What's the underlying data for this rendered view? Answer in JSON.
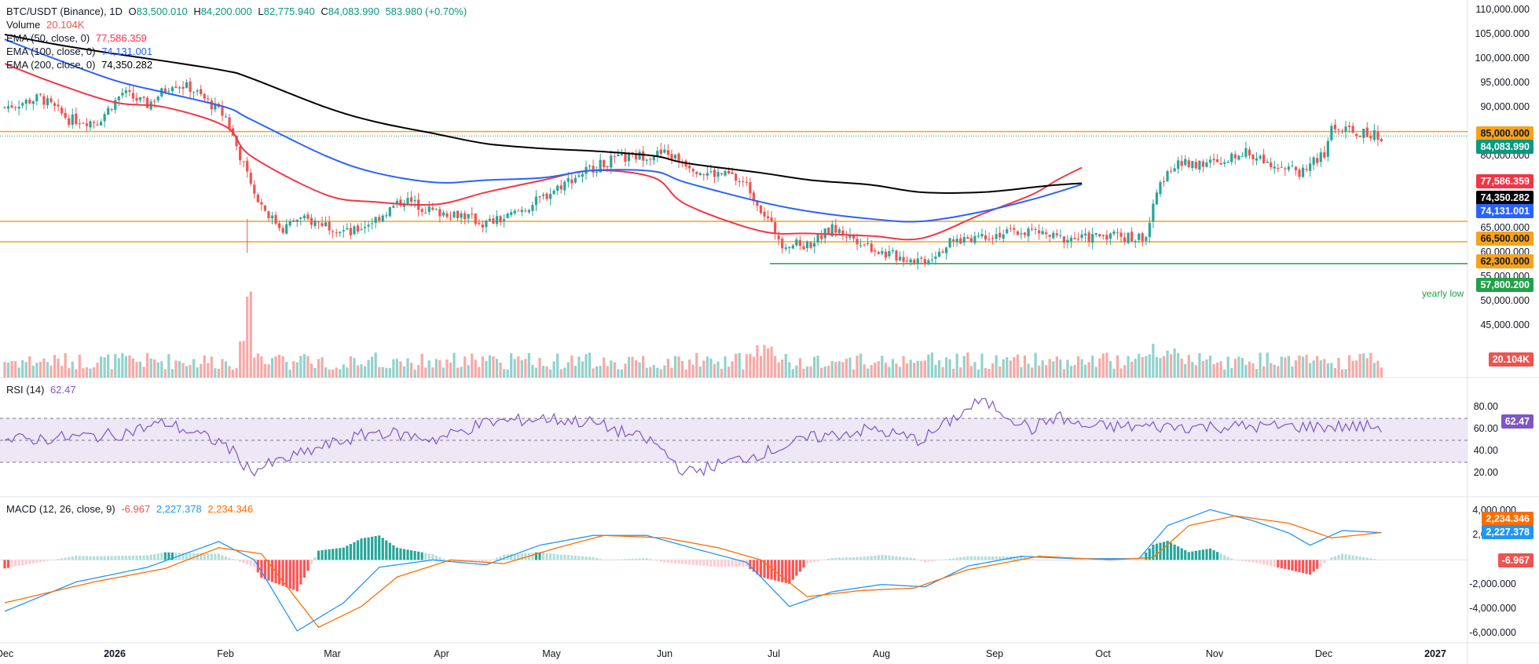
{
  "header": {
    "symbol": "BTC/USDT (Binance), 1D",
    "open_label": "O",
    "open": "83,500.010",
    "high_label": "H",
    "high": "84,200.000",
    "low_label": "L",
    "low": "82,775.940",
    "close_label": "C",
    "close": "84,083.990",
    "change": "583.980 (+0.70%)"
  },
  "indicators": {
    "volume": {
      "label": "Volume",
      "value": "20.104K",
      "color": "#ef5350"
    },
    "ema50": {
      "label": "EMA (50, close, 0)",
      "value": "77,586.359",
      "color": "#f23645"
    },
    "ema100": {
      "label": "EMA (100, close, 0)",
      "value": "74,131.001",
      "color": "#2962ff"
    },
    "ema200": {
      "label": "EMA (200, close, 0)",
      "value": "74,350.282",
      "color": "#000000"
    },
    "rsi": {
      "label": "RSI (14)",
      "value": "62.47",
      "color": "#7e57c2"
    },
    "macd": {
      "label": "MACD (12, 26, close, 9)",
      "hist": "-6.967",
      "macd": "2,227.378",
      "signal": "2,234.346"
    }
  },
  "price_axis": [
    "110,000.000",
    "105,000.000",
    "100,000.000",
    "95,000.000",
    "90,000.000",
    "85,000.000",
    "80,000.000",
    "75,000.000",
    "70,000.000",
    "65,000.000",
    "60,000.000",
    "55,000.000",
    "50,000.000",
    "45,000.000"
  ],
  "rsi_axis": [
    "80.00",
    "60.00",
    "40.00",
    "20.00"
  ],
  "macd_axis": [
    "4,000.000",
    "2,000.000",
    "-2,000.000",
    "-4,000.000",
    "-6,000.000"
  ],
  "pills": {
    "level_85000": "85,000.000",
    "last_price": "84,083.990",
    "ema50": "77,586.359",
    "ema200": "74,350.282",
    "ema100": "74,131.001",
    "level_66500": "66,500.000",
    "level_62300": "62,300.000",
    "level_57800": "57,800.200",
    "volume": "20.104K",
    "rsi": "62.47",
    "macd_signal": "2,234.346",
    "macd_line": "2,227.378",
    "macd_hist": "-6.967"
  },
  "annotation": {
    "yearly_low": "yearly low"
  },
  "time_axis": [
    {
      "label": "Dec",
      "year": false
    },
    {
      "label": "2026",
      "year": true
    },
    {
      "label": "Feb",
      "year": false
    },
    {
      "label": "Mar",
      "year": false
    },
    {
      "label": "Apr",
      "year": false
    },
    {
      "label": "May",
      "year": false
    },
    {
      "label": "Jun",
      "year": false
    },
    {
      "label": "Jul",
      "year": false
    },
    {
      "label": "Aug",
      "year": false
    },
    {
      "label": "Sep",
      "year": false
    },
    {
      "label": "Oct",
      "year": false
    },
    {
      "label": "Nov",
      "year": false
    },
    {
      "label": "Dec",
      "year": false
    },
    {
      "label": "2027",
      "year": true
    }
  ],
  "colors": {
    "up": "#26a69a",
    "down": "#ef5350",
    "level": "#f7a21b",
    "support": "#22a14a",
    "rsi_band": "#ede7f6",
    "macd_line": "#2196f3",
    "macd_signal": "#ff6d00"
  },
  "chart_data": {
    "type": "line",
    "title": "BTC/USDT (Binance), 1D",
    "x": [
      "2025-12-01",
      "2025-12-15",
      "2026-01-01",
      "2026-01-15",
      "2026-02-01",
      "2026-02-08",
      "2026-03-01",
      "2026-03-15",
      "2026-04-01",
      "2026-04-15",
      "2026-05-01",
      "2026-05-15",
      "2026-06-01",
      "2026-06-10",
      "2026-07-01",
      "2026-07-15",
      "2026-08-01",
      "2026-08-15",
      "2026-09-01",
      "2026-09-15",
      "2026-09-22",
      "2026-09-29"
    ],
    "series": [
      {
        "name": "EMA (50, close, 0)",
        "values": [
          99000,
          95000,
          91000,
          90000,
          86000,
          80000,
          72000,
          70500,
          70000,
          72500,
          75000,
          77000,
          75500,
          70000,
          64500,
          64000,
          63500,
          63000,
          68000,
          72000,
          75000,
          77586
        ]
      },
      {
        "name": "EMA (100, close, 0)",
        "values": [
          104000,
          100000,
          95500,
          93000,
          90000,
          87500,
          80000,
          76500,
          74500,
          75000,
          75500,
          77000,
          76800,
          74500,
          70500,
          68500,
          67000,
          66500,
          68500,
          71000,
          72500,
          74131
        ]
      },
      {
        "name": "EMA (200, close, 0)",
        "values": [
          105000,
          103000,
          101000,
          99500,
          97500,
          96000,
          90000,
          87000,
          84500,
          82500,
          81500,
          81000,
          80000,
          78500,
          76500,
          75000,
          74000,
          72500,
          72500,
          73500,
          74000,
          74350
        ]
      },
      {
        "name": "RSI (14)",
        "values": [
          50,
          52,
          55,
          66,
          46,
          22,
          45,
          58,
          51,
          66,
          70,
          66,
          48,
          20,
          38,
          52,
          60,
          50,
          87,
          60,
          72,
          62.47
        ]
      }
    ],
    "price_levels": [
      85000,
      66500,
      62300,
      57800.2
    ],
    "last": 84083.99,
    "ylim": [
      45000,
      110000
    ]
  }
}
